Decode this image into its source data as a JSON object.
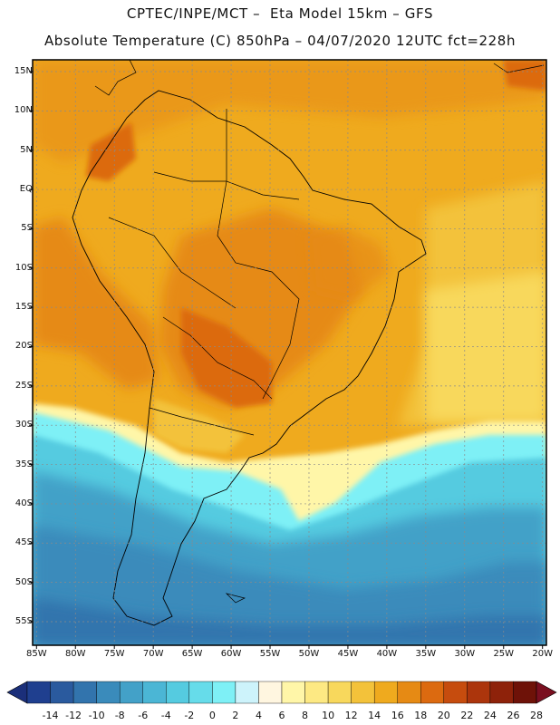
{
  "header": {
    "line1": "CPTEC/INPE/MCT –  Eta Model 15km – GFS",
    "line2": "Absolute Temperature (C) 850hPa – 04/07/2020 12UTC fct=228h"
  },
  "map": {
    "projection": "lat-lon",
    "lon_range": [
      -85.5,
      -19.5
    ],
    "lat_range": [
      -58,
      16.5
    ],
    "lat_labels": [
      "15N",
      "10N",
      "5N",
      "EQ",
      "5S",
      "10S",
      "15S",
      "20S",
      "25S",
      "30S",
      "35S",
      "40S",
      "45S",
      "50S",
      "55S"
    ],
    "lat_values": [
      15,
      10,
      5,
      0,
      -5,
      -10,
      -15,
      -20,
      -25,
      -30,
      -35,
      -40,
      -45,
      -50,
      -55
    ],
    "lon_labels": [
      "85W",
      "80W",
      "75W",
      "70W",
      "65W",
      "60W",
      "55W",
      "50W",
      "45W",
      "40W",
      "35W",
      "30W",
      "25W",
      "20W"
    ],
    "lon_values": [
      -85,
      -80,
      -75,
      -70,
      -65,
      -60,
      -55,
      -50,
      -45,
      -40,
      -35,
      -30,
      -25,
      -20
    ]
  },
  "colorbar": {
    "labels": [
      "-14",
      "-12",
      "-10",
      "-8",
      "-6",
      "-4",
      "-2",
      "0",
      "2",
      "4",
      "6",
      "8",
      "10",
      "12",
      "14",
      "16",
      "18",
      "20",
      "22",
      "24",
      "26",
      "28"
    ],
    "colors": [
      "#1f3f8f",
      "#2a5a9e",
      "#3274ad",
      "#3a8bbb",
      "#43a1c8",
      "#4bb6d5",
      "#55cbe0",
      "#66dcea",
      "#7ef0f6",
      "#cdf3fb",
      "#fff6e0",
      "#fff6a8",
      "#fde983",
      "#f8d85c",
      "#f3c23a",
      "#efaa1e",
      "#e68a14",
      "#dc6a10",
      "#c64c0e",
      "#ac350c",
      "#8e220a",
      "#6e1208"
    ],
    "underflow_color": "#1b2f7a",
    "overflow_color": "#7a0f20"
  }
}
